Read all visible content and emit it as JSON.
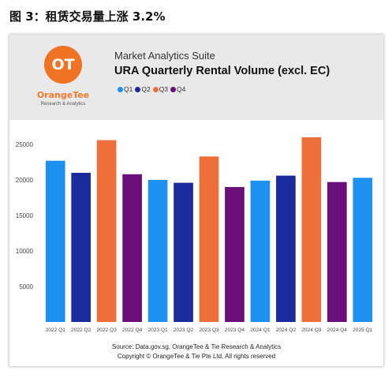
{
  "caption": "图 3：租赁交易量上涨 3.2%",
  "logo": {
    "mark": "OT",
    "name": "OrangeTee",
    "sub": "Research & Analytics"
  },
  "header": {
    "suite": "Market Analytics Suite",
    "title": "URA Quarterly Rental Volume (excl. EC)"
  },
  "legend": [
    {
      "label": "Q1",
      "color": "#1e90f0"
    },
    {
      "label": "Q2",
      "color": "#1b2a9c"
    },
    {
      "label": "Q3",
      "color": "#ef6f3a"
    },
    {
      "label": "Q4",
      "color": "#6a0f7a"
    }
  ],
  "chart_data": {
    "type": "bar",
    "title": "URA Quarterly Rental Volume (excl. EC)",
    "xlabel": "",
    "ylabel": "",
    "ylim": [
      0,
      28000
    ],
    "yticks": [
      5000,
      10000,
      15000,
      20000,
      25000
    ],
    "categories": [
      "2022 Q1",
      "2022 Q2",
      "2022 Q3",
      "2022 Q4",
      "2023 Q1",
      "2023 Q2",
      "2023 Q3",
      "2023 Q4",
      "2024 Q1",
      "2024 Q2",
      "2024 Q3",
      "2024 Q4",
      "2025 Q1"
    ],
    "values": [
      22700,
      21000,
      25600,
      20800,
      20000,
      19600,
      23300,
      19000,
      19900,
      20600,
      26000,
      19700,
      20300
    ],
    "quarters": [
      "Q1",
      "Q2",
      "Q3",
      "Q4",
      "Q1",
      "Q2",
      "Q3",
      "Q4",
      "Q1",
      "Q2",
      "Q3",
      "Q4",
      "Q1"
    ],
    "grid": false,
    "legend_position": "top"
  },
  "footer": {
    "source": "Source: Data.gov.sg, OrangeTee & Tie Research & Analytics",
    "copyright": "Copyright © OrangeTee & Tie Pte Ltd. All rights reserved"
  }
}
